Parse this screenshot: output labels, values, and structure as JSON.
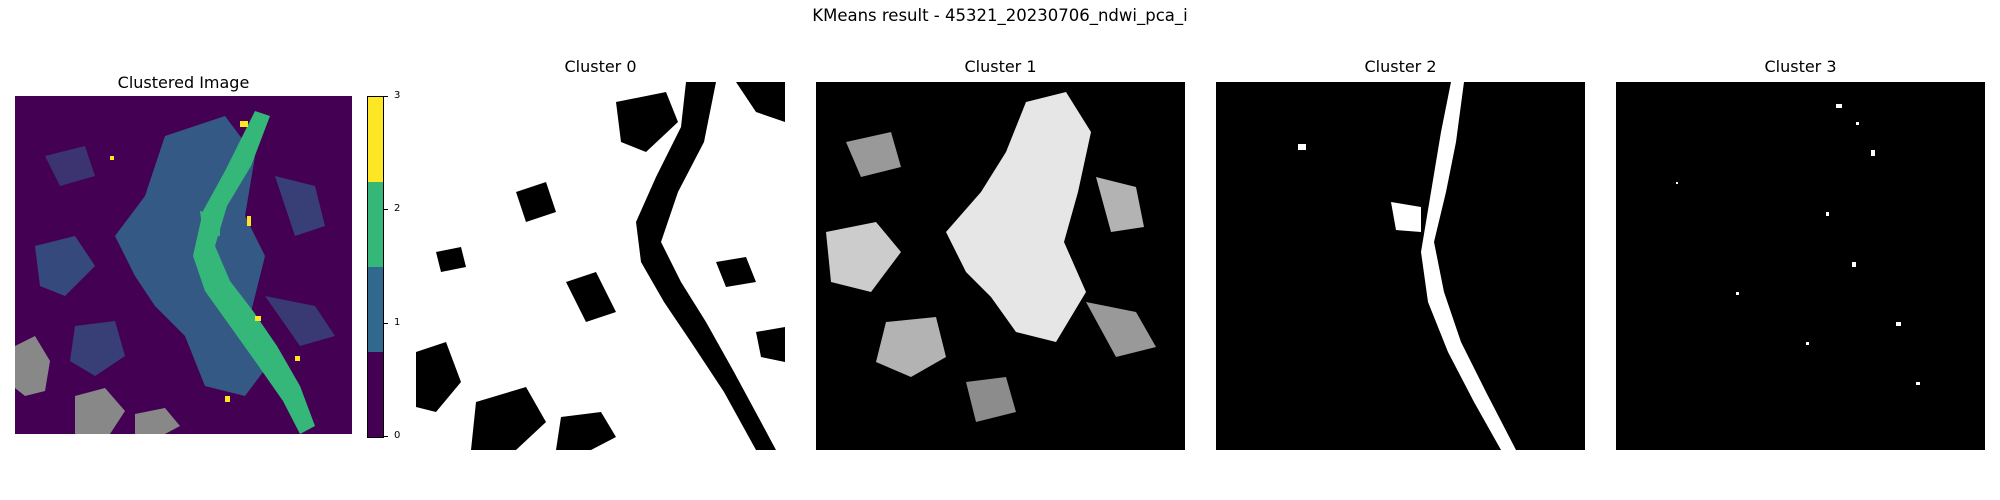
{
  "figure": {
    "suptitle": "KMeans result - 45321_20230706_ndwi_pca_i"
  },
  "colors": {
    "cluster_0": "#440154",
    "cluster_1": "#31688e",
    "cluster_2": "#35b779",
    "cluster_3": "#fde725",
    "nodata": "#888888",
    "mask_on": "#ffffff",
    "mask_off": "#000000"
  },
  "chart_data": [
    {
      "type": "heatmap",
      "title": "Clustered Image",
      "colormap": "viridis (discrete, 4 levels)",
      "colorbar": {
        "ticks": [
          "0",
          "1",
          "2",
          "3"
        ],
        "range": [
          0,
          3
        ]
      },
      "classes": [
        0,
        1,
        2,
        3
      ],
      "axes": "off"
    },
    {
      "type": "heatmap",
      "title": "Cluster 0",
      "colormap": "binary mask (white = member)",
      "axes": "off"
    },
    {
      "type": "heatmap",
      "title": "Cluster 1",
      "colormap": "binary mask (white = member)",
      "axes": "off"
    },
    {
      "type": "heatmap",
      "title": "Cluster 2",
      "colormap": "binary mask (white = member)",
      "axes": "off"
    },
    {
      "type": "heatmap",
      "title": "Cluster 3",
      "colormap": "binary mask (white = member)",
      "axes": "off"
    }
  ]
}
